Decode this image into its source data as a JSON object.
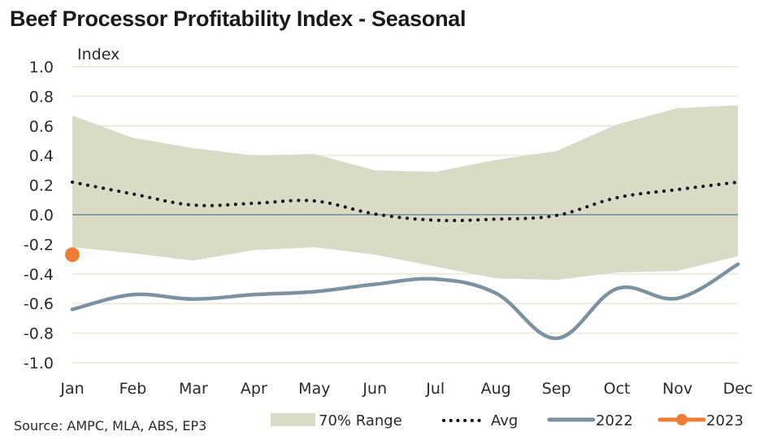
{
  "chart_data": {
    "type": "line",
    "title": "Beef Processor Profitability Index - Seasonal",
    "ylabel": "Index",
    "xlabel": "",
    "ylim": [
      -1.0,
      1.0
    ],
    "yticks": [
      "1.0",
      "0.8",
      "0.6",
      "0.4",
      "0.2",
      "0.0",
      "-0.2",
      "-0.4",
      "-0.6",
      "-0.8",
      "-1.0"
    ],
    "ytick_values": [
      1.0,
      0.8,
      0.6,
      0.4,
      0.2,
      0.0,
      -0.2,
      -0.4,
      -0.6,
      -0.8,
      -1.0
    ],
    "categories": [
      "Jan",
      "Feb",
      "Mar",
      "Apr",
      "May",
      "Jun",
      "Jul",
      "Aug",
      "Sep",
      "Oct",
      "Nov",
      "Dec"
    ],
    "grid": true,
    "legend_position": "bottom",
    "source": "Source: AMPC, MLA, ABS, EP3",
    "range": {
      "name": "70% Range",
      "upper": [
        0.67,
        0.52,
        0.45,
        0.4,
        0.41,
        0.3,
        0.29,
        0.37,
        0.43,
        0.61,
        0.72,
        0.74
      ],
      "lower": [
        -0.22,
        -0.26,
        -0.31,
        -0.24,
        -0.22,
        -0.27,
        -0.35,
        -0.43,
        -0.44,
        -0.39,
        -0.38,
        -0.28
      ],
      "color": "#d9dbc6"
    },
    "series": [
      {
        "name": "Avg",
        "style": "dotted",
        "color": "#111111",
        "values": [
          0.22,
          0.14,
          0.065,
          0.077,
          0.093,
          0.005,
          -0.037,
          -0.03,
          -0.005,
          0.115,
          0.17,
          0.22
        ]
      },
      {
        "name": "2022",
        "style": "solid",
        "color": "#7b93a1",
        "values": [
          -0.64,
          -0.54,
          -0.57,
          -0.54,
          -0.52,
          -0.47,
          -0.435,
          -0.53,
          -0.835,
          -0.5,
          -0.565,
          -0.335
        ]
      },
      {
        "name": "2023",
        "style": "marker",
        "color": "#ef7d36",
        "values": [
          -0.27,
          null,
          null,
          null,
          null,
          null,
          null,
          null,
          null,
          null,
          null,
          null
        ]
      }
    ],
    "legend": [
      "70% Range",
      "Avg",
      "2022",
      "2023"
    ],
    "zero_line_color": "#8f9ea6",
    "grid_color": "#ecebe0"
  }
}
